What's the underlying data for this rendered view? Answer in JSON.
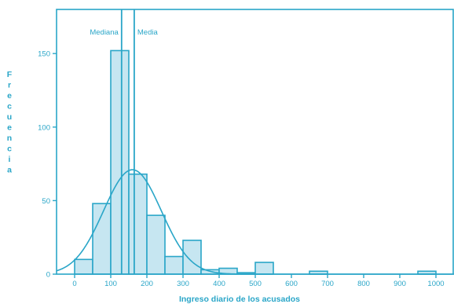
{
  "chart_data": {
    "type": "bar",
    "xlabel": "Ingreso diario de los acusados",
    "ylabel": "Frecuencia",
    "xlim": [
      -50,
      1050
    ],
    "ylim": [
      0,
      180
    ],
    "x_ticks": [
      0,
      100,
      200,
      300,
      400,
      500,
      600,
      700,
      800,
      900,
      1000
    ],
    "y_ticks": [
      0,
      50,
      100,
      150
    ],
    "bin_width": 50,
    "bins": [
      {
        "start": 0,
        "count": 10
      },
      {
        "start": 50,
        "count": 48
      },
      {
        "start": 100,
        "count": 152
      },
      {
        "start": 150,
        "count": 68
      },
      {
        "start": 200,
        "count": 40
      },
      {
        "start": 250,
        "count": 12
      },
      {
        "start": 300,
        "count": 23
      },
      {
        "start": 350,
        "count": 3
      },
      {
        "start": 400,
        "count": 4
      },
      {
        "start": 450,
        "count": 1
      },
      {
        "start": 500,
        "count": 8
      },
      {
        "start": 650,
        "count": 2
      },
      {
        "start": 950,
        "count": 2
      }
    ],
    "normal_curve": {
      "mean": 160,
      "sd": 80,
      "peak": 71
    },
    "reference_lines": [
      {
        "label": "Mediana",
        "value": 130
      },
      {
        "label": "Media",
        "value": 165
      }
    ],
    "colors": {
      "axis": "#2aa6c8",
      "bar_fill": "#c6e6f1",
      "bar_stroke": "#2aa6c8",
      "curve": "#2aa6c8"
    }
  }
}
